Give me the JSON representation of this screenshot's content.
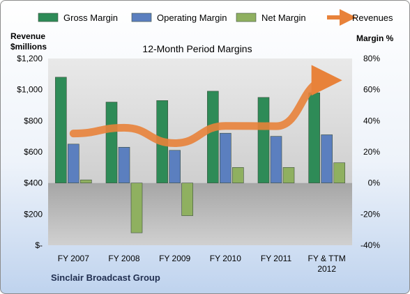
{
  "chart_data": {
    "type": "bar",
    "title": "12-Month Period Margins",
    "categories": [
      "FY 2007",
      "FY 2008",
      "FY 2009",
      "FY 2010",
      "FY 2011",
      "FY & TTM 2012"
    ],
    "series": [
      {
        "name": "Gross Margin",
        "axis": "right",
        "color": "#2e8b57",
        "values": [
          68,
          52,
          53,
          59,
          55,
          58
        ]
      },
      {
        "name": "Operating Margin",
        "axis": "right",
        "color": "#5b7fbf",
        "values": [
          25,
          23,
          21,
          32,
          30,
          31
        ]
      },
      {
        "name": "Net Margin",
        "axis": "right",
        "color": "#8fb060",
        "values": [
          2,
          -32,
          -21,
          10,
          10,
          13
        ]
      },
      {
        "name": "Revenues",
        "axis": "left",
        "type": "line",
        "color": "#e8823a",
        "values": [
          718,
          755,
          656,
          767,
          765,
          1060
        ]
      }
    ],
    "y_left": {
      "label_line1": "Revenue",
      "label_line2": "$millions",
      "range": [
        0,
        1200
      ],
      "ticks": [
        "$-",
        "$200",
        "$400",
        "$600",
        "$800",
        "$1,000",
        "$1,200"
      ]
    },
    "y_right": {
      "label": "Margin %",
      "range": [
        -40,
        80
      ],
      "ticks": [
        "-40%",
        "-20%",
        "0%",
        "20%",
        "40%",
        "60%",
        "80%"
      ]
    },
    "legend_position": "top",
    "grid": false,
    "company": "Sinclair Broadcast Group"
  }
}
